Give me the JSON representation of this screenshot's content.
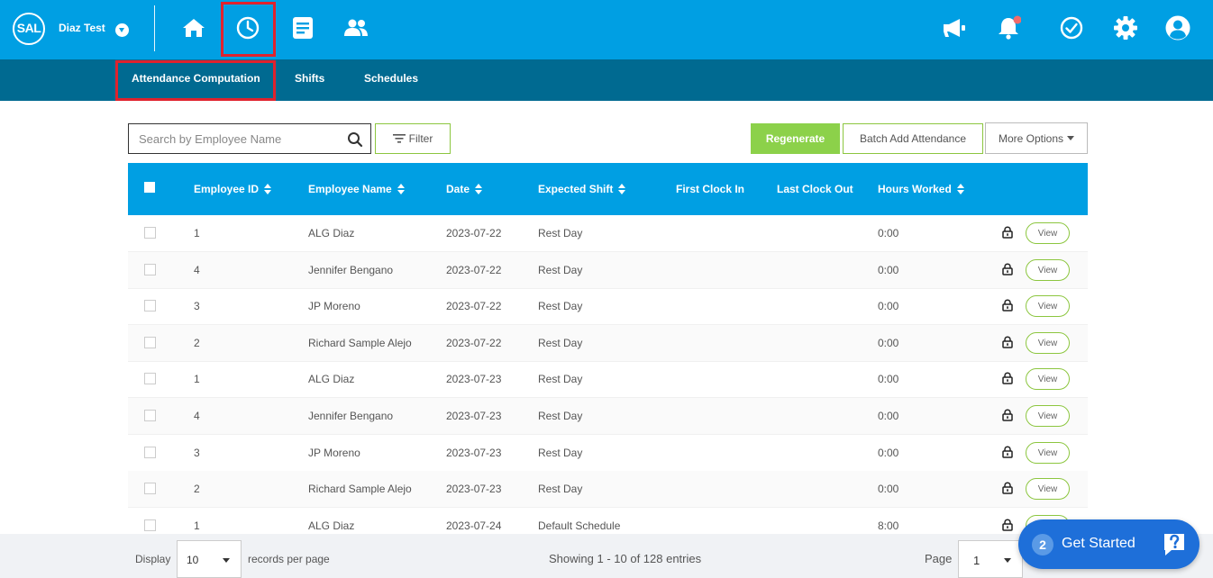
{
  "topbar": {
    "logo_text": "SAL",
    "company_name": "Diaz Test",
    "nav_icons": [
      "home-icon",
      "clock-icon",
      "document-icon",
      "people-icon"
    ],
    "right_icons": [
      "megaphone-icon",
      "bell-icon",
      "check-circle-icon",
      "gear-icon",
      "user-icon"
    ],
    "bg_color": "#009fe3",
    "highlight_color": "#e0222d"
  },
  "subnav": {
    "tabs": [
      {
        "label": "Attendance Computation",
        "active": true
      },
      {
        "label": "Shifts"
      },
      {
        "label": "Schedules"
      }
    ],
    "bg_color": "#006a91"
  },
  "page": {
    "ghost_title": "Attendance Computation"
  },
  "toolbar": {
    "search_placeholder": "Search by Employee Name",
    "filter_label": "Filter",
    "regenerate_label": "Regenerate",
    "batch_label": "Batch Add Attendance",
    "more_label": "More Options"
  },
  "table": {
    "columns": [
      "Employee ID",
      "Employee Name",
      "Date",
      "Expected Shift",
      "First Clock In",
      "Last Clock Out",
      "Hours Worked"
    ],
    "rows": [
      {
        "id": "1",
        "name": "ALG Diaz",
        "date": "2023-07-22",
        "shift": "Rest Day",
        "first_in": "",
        "last_out": "",
        "hours": "0:00"
      },
      {
        "id": "4",
        "name": "Jennifer Bengano",
        "date": "2023-07-22",
        "shift": "Rest Day",
        "first_in": "",
        "last_out": "",
        "hours": "0:00"
      },
      {
        "id": "3",
        "name": "JP Moreno",
        "date": "2023-07-22",
        "shift": "Rest Day",
        "first_in": "",
        "last_out": "",
        "hours": "0:00"
      },
      {
        "id": "2",
        "name": "Richard Sample Alejo",
        "date": "2023-07-22",
        "shift": "Rest Day",
        "first_in": "",
        "last_out": "",
        "hours": "0:00"
      },
      {
        "id": "1",
        "name": "ALG Diaz",
        "date": "2023-07-23",
        "shift": "Rest Day",
        "first_in": "",
        "last_out": "",
        "hours": "0:00"
      },
      {
        "id": "4",
        "name": "Jennifer Bengano",
        "date": "2023-07-23",
        "shift": "Rest Day",
        "first_in": "",
        "last_out": "",
        "hours": "0:00"
      },
      {
        "id": "3",
        "name": "JP Moreno",
        "date": "2023-07-23",
        "shift": "Rest Day",
        "first_in": "",
        "last_out": "",
        "hours": "0:00"
      },
      {
        "id": "2",
        "name": "Richard Sample Alejo",
        "date": "2023-07-23",
        "shift": "Rest Day",
        "first_in": "",
        "last_out": "",
        "hours": "0:00"
      },
      {
        "id": "1",
        "name": "ALG Diaz",
        "date": "2023-07-24",
        "shift": "Default Schedule",
        "first_in": "",
        "last_out": "",
        "hours": "8:00"
      }
    ],
    "view_label": "View",
    "header_color": "#009fe3"
  },
  "footer": {
    "display_label": "Display",
    "per_page_value": "10",
    "per_page_suffix": "records per page",
    "showing_text": "Showing 1 - 10 of 128 entries",
    "page_label": "Page",
    "page_value": "1"
  },
  "get_started": {
    "count": "2",
    "label": "Get Started"
  }
}
